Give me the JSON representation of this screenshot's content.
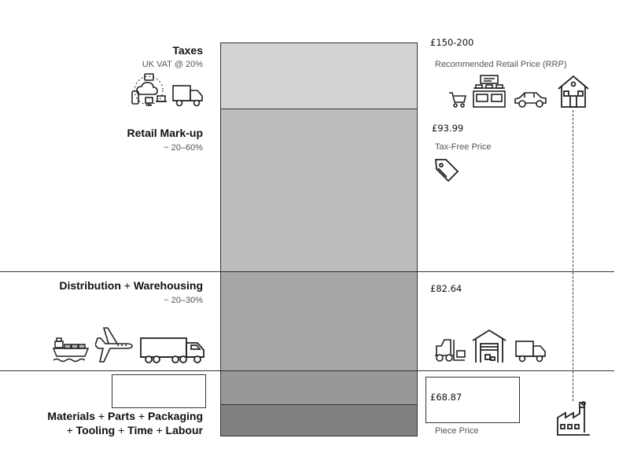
{
  "segments": [
    {
      "name": "Taxes",
      "note": "UK VAT @ 20%",
      "color": "#d3d3d6"
    },
    {
      "name": "Retail Mark-up",
      "note": "~ 20–60%",
      "color": "#bcbcbf"
    },
    {
      "name_part1": "Distribution",
      "plus": "+",
      "name_part2": "Warehousing",
      "note": "~ 20–30%",
      "color": "#a7a7aa"
    },
    {
      "names": [
        "Materials",
        "Parts",
        "Packaging",
        "Tooling",
        "Time",
        "Labour"
      ],
      "plus": "+",
      "colors": [
        "#98989b",
        "#808083"
      ]
    }
  ],
  "prices": {
    "rrp": {
      "value": "£150-200",
      "label": "Recommended Retail Price (RRP)"
    },
    "tax_free": {
      "value": "£93.99",
      "label": "Tax-Free Price"
    },
    "distribution": {
      "value": "£82.64"
    },
    "piece": {
      "value": "£68.87",
      "label": "Piece Price"
    }
  },
  "icons": {
    "taxes": [
      "devices-cloud-icon",
      "delivery-van-icon"
    ],
    "retail": [
      "shopping-cart-icon",
      "shop-counter-icon",
      "car-icon",
      "house-icon"
    ],
    "tax_free": [
      "price-tag-icon"
    ],
    "distribution_left": [
      "cargo-ship-icon",
      "airplane-icon",
      "lorry-truck-icon"
    ],
    "distribution_right": [
      "forklift-icon",
      "warehouse-icon",
      "delivery-van-icon"
    ],
    "factory": [
      "factory-icon"
    ]
  }
}
